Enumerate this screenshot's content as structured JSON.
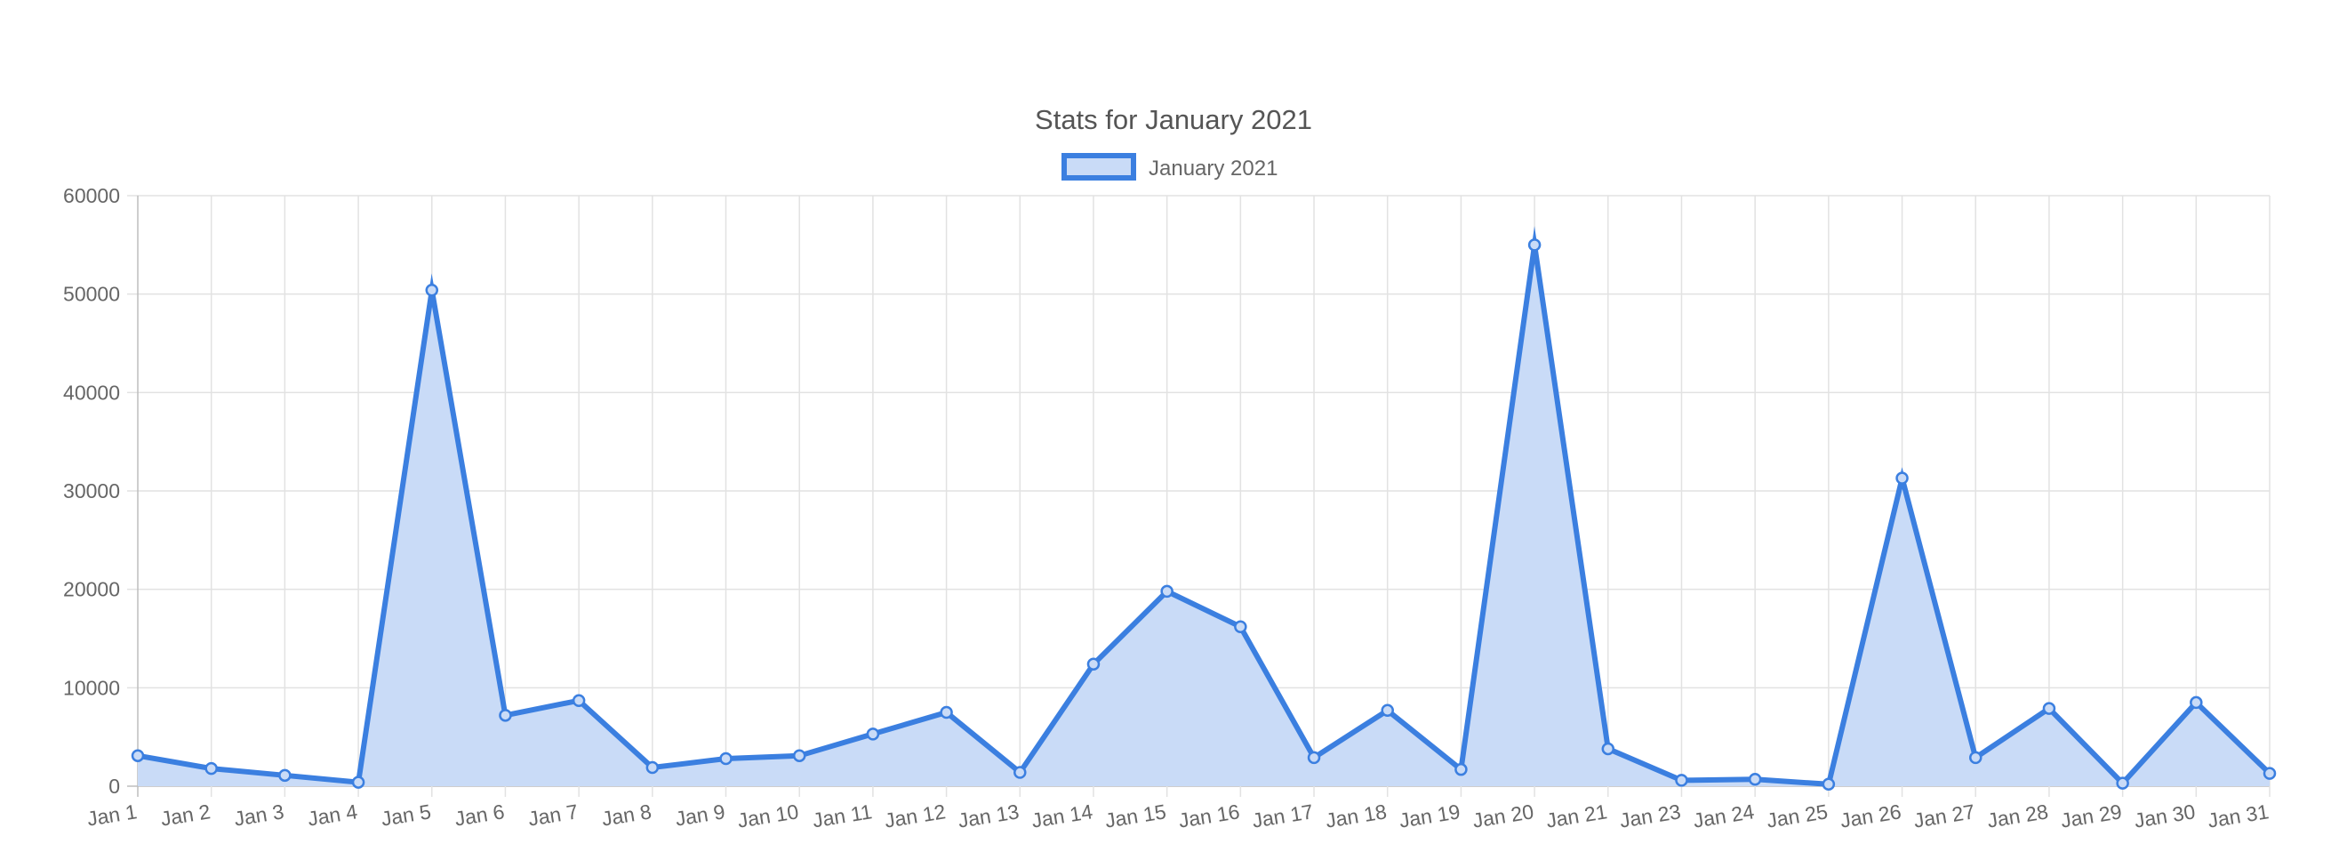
{
  "chart_data": {
    "type": "area",
    "title": "Stats for January 2021",
    "xlabel": "",
    "ylabel": "",
    "ylim": [
      0,
      60000
    ],
    "yticks": [
      0,
      10000,
      20000,
      30000,
      40000,
      50000,
      60000
    ],
    "grid": true,
    "legend_position": "top",
    "categories": [
      "Jan 1",
      "Jan 2",
      "Jan 3",
      "Jan 4",
      "Jan 5",
      "Jan 6",
      "Jan 7",
      "Jan 8",
      "Jan 9",
      "Jan 10",
      "Jan 11",
      "Jan 12",
      "Jan 13",
      "Jan 14",
      "Jan 15",
      "Jan 16",
      "Jan 17",
      "Jan 18",
      "Jan 19",
      "Jan 20",
      "Jan 21",
      "Jan 23",
      "Jan 24",
      "Jan 25",
      "Jan 26",
      "Jan 27",
      "Jan 28",
      "Jan 29",
      "Jan 30",
      "Jan 31"
    ],
    "series": [
      {
        "name": "January 2021",
        "color": "#3b7fe0",
        "fill": "#c9dbf7",
        "values": [
          3100,
          1800,
          1100,
          400,
          50400,
          7200,
          8700,
          1900,
          2800,
          3100,
          5300,
          7500,
          1400,
          12400,
          19800,
          16200,
          2900,
          7700,
          1700,
          55000,
          3800,
          600,
          700,
          200,
          31300,
          2900,
          7900,
          300,
          8500,
          1300
        ]
      }
    ]
  }
}
